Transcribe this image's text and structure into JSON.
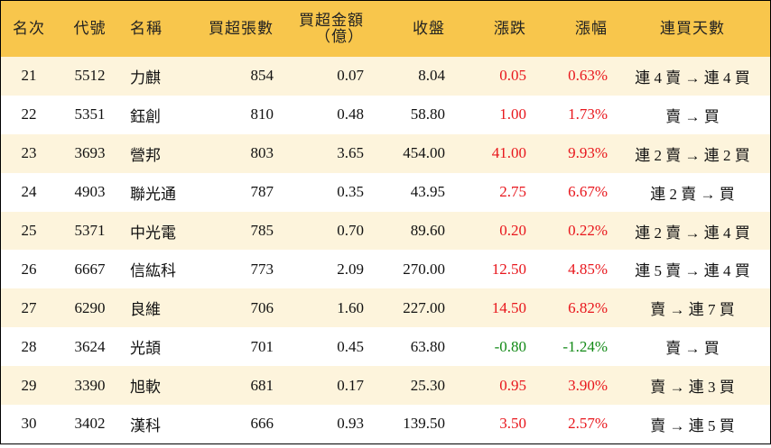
{
  "table": {
    "header": [
      "名次",
      "代號",
      "名稱",
      "買超張數",
      "買超金額\n（億）",
      "收盤",
      "漲跌",
      "漲幅",
      "連買天數"
    ],
    "rows": [
      [
        "21",
        "5512",
        "力麒",
        "854",
        "0.07",
        "8.04",
        "0.05",
        "0.63%",
        "連 4 賣 → 連 4 買"
      ],
      [
        "22",
        "5351",
        "鈺創",
        "810",
        "0.48",
        "58.80",
        "1.00",
        "1.73%",
        "賣 → 買"
      ],
      [
        "23",
        "3693",
        "營邦",
        "803",
        "3.65",
        "454.00",
        "41.00",
        "9.93%",
        "連 2 賣 → 連 2 買"
      ],
      [
        "24",
        "4903",
        "聯光通",
        "787",
        "0.35",
        "43.95",
        "2.75",
        "6.67%",
        "連 2 賣 → 買"
      ],
      [
        "25",
        "5371",
        "中光電",
        "785",
        "0.70",
        "89.60",
        "0.20",
        "0.22%",
        "連 2 賣 → 連 4 買"
      ],
      [
        "26",
        "6667",
        "信紘科",
        "773",
        "2.09",
        "270.00",
        "12.50",
        "4.85%",
        "連 5 賣 → 連 4 買"
      ],
      [
        "27",
        "6290",
        "良維",
        "706",
        "1.60",
        "227.00",
        "14.50",
        "6.82%",
        "賣 → 連 7 買"
      ],
      [
        "28",
        "3624",
        "光頡",
        "701",
        "0.45",
        "63.80",
        "-0.80",
        "-1.24%",
        "賣 → 買"
      ],
      [
        "29",
        "3390",
        "旭軟",
        "681",
        "0.17",
        "25.30",
        "0.95",
        "3.90%",
        "賣 → 連 3 買"
      ],
      [
        "30",
        "3402",
        "漢科",
        "666",
        "0.93",
        "139.50",
        "3.50",
        "2.57%",
        "賣 → 連 5 買"
      ]
    ]
  }
}
